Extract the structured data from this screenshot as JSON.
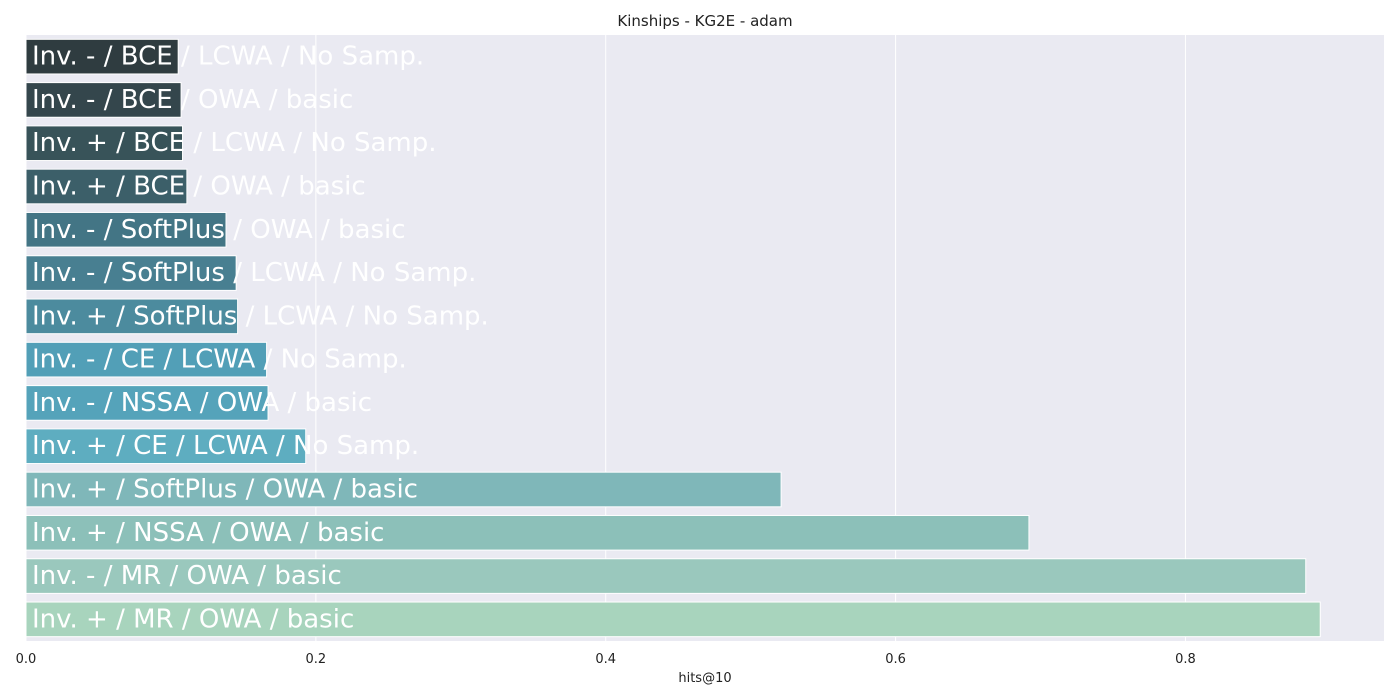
{
  "chart_data": {
    "type": "bar",
    "orientation": "horizontal",
    "title": "Kinships - KG2E - adam",
    "xlabel": "hits@10",
    "ylabel": "",
    "xlim": [
      0,
      0.937
    ],
    "xticks": [
      "0.0",
      "0.2",
      "0.4",
      "0.6",
      "0.8"
    ],
    "grid": true,
    "categories": [
      "Inv. - / BCE / LCWA / No Samp.",
      "Inv. - / BCE / OWA / basic",
      "Inv. + / BCE / LCWA / No Samp.",
      "Inv. + / BCE / OWA / basic",
      "Inv. - / SoftPlus / OWA / basic",
      "Inv. - / SoftPlus / LCWA / No Samp.",
      "Inv. + / SoftPlus / LCWA / No Samp.",
      "Inv. - / CE / LCWA / No Samp.",
      "Inv. - / NSSA / OWA / basic",
      "Inv. + / CE / LCWA / No Samp.",
      "Inv. + / SoftPlus / OWA / basic",
      "Inv. + / NSSA / OWA / basic",
      "Inv. - / MR / OWA / basic",
      "Inv. + / MR / OWA / basic"
    ],
    "values": [
      0.105,
      0.107,
      0.108,
      0.111,
      0.138,
      0.145,
      0.146,
      0.166,
      0.167,
      0.193,
      0.521,
      0.692,
      0.883,
      0.893
    ],
    "colors": [
      "#2f3c40",
      "#34464c",
      "#385359",
      "#3c5f69",
      "#437585",
      "#487f91",
      "#4c8b9e",
      "#529fb7",
      "#55a3ba",
      "#5eadc0",
      "#7fb7b9",
      "#8cc0b9",
      "#9ac8bd",
      "#a8d4bd"
    ]
  }
}
